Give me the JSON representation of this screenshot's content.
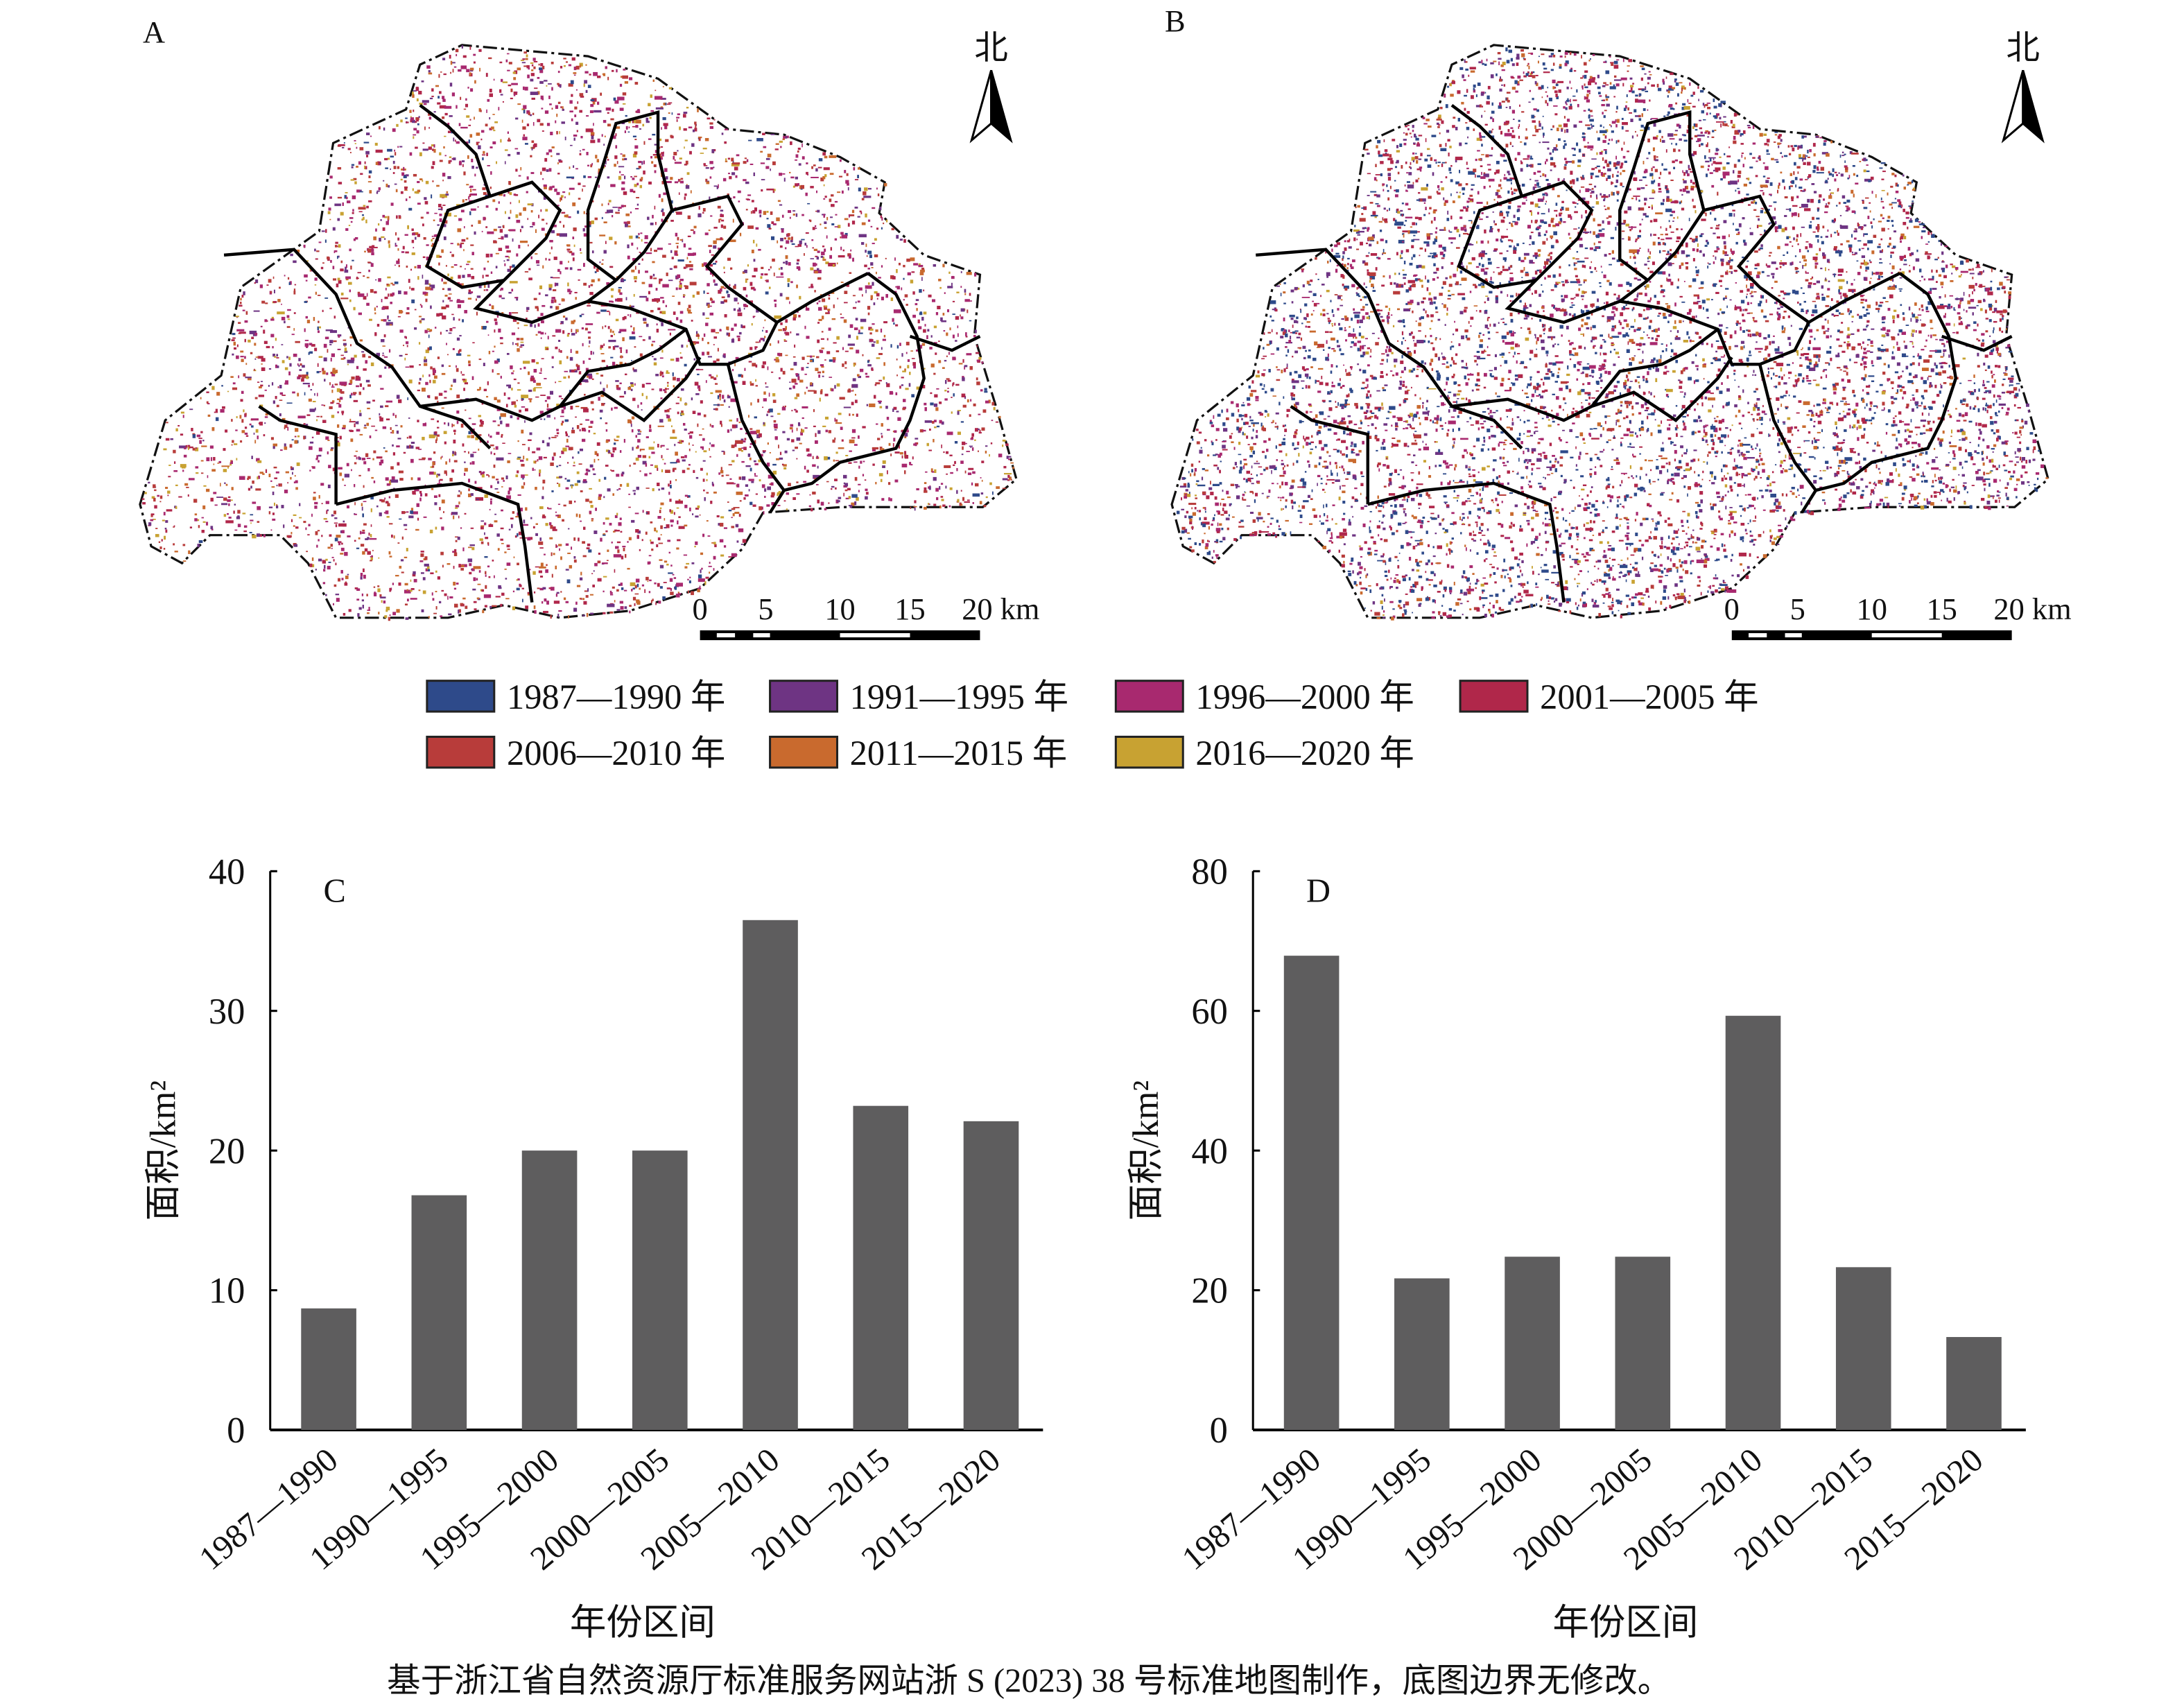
{
  "maps": [
    {
      "label": "A",
      "north": "北",
      "scale_labels": [
        "0",
        "5",
        "10",
        "15",
        "20 km"
      ]
    },
    {
      "label": "B",
      "north": "北",
      "scale_labels": [
        "0",
        "5",
        "10",
        "15",
        "20 km"
      ]
    }
  ],
  "legend": [
    {
      "label": "1987—1990 年",
      "color": "#2e4a8a"
    },
    {
      "label": "1991—1995 年",
      "color": "#6e3483"
    },
    {
      "label": "1996—2000 年",
      "color": "#a8296f"
    },
    {
      "label": "2001—2005 年",
      "color": "#b0274a"
    },
    {
      "label": "2006—2010 年",
      "color": "#b83c3a"
    },
    {
      "label": "2011—2015 年",
      "color": "#c96a2e"
    },
    {
      "label": "2016—2020 年",
      "color": "#c8a232"
    }
  ],
  "chart_data": [
    {
      "type": "bar",
      "panel": "C",
      "categories": [
        "1987—1990",
        "1990—1995",
        "1995—2000",
        "2000—2005",
        "2005—2010",
        "2010—2015",
        "2015—2020"
      ],
      "values": [
        8.7,
        16.8,
        20.0,
        20.0,
        36.5,
        23.2,
        22.1
      ],
      "xlabel": "年份区间",
      "ylabel": "面积/km²",
      "ylim": [
        0,
        40
      ],
      "yticks": [
        0,
        10,
        20,
        30,
        40
      ],
      "bar_color": "#5e5d5e"
    },
    {
      "type": "bar",
      "panel": "D",
      "categories": [
        "1987—1990",
        "1990—1995",
        "1995—2000",
        "2000—2005",
        "2005—2010",
        "2010—2015",
        "2015—2020"
      ],
      "values": [
        67.9,
        21.7,
        24.8,
        24.8,
        59.3,
        23.3,
        13.3
      ],
      "xlabel": "年份区间",
      "ylabel": "面积/km²",
      "ylim": [
        0,
        80
      ],
      "yticks": [
        0,
        20,
        40,
        60,
        80
      ],
      "bar_color": "#5e5d5e"
    }
  ],
  "caption": "基于浙江省自然资源厅标准服务网站浙 S (2023) 38 号标准地图制作，底图边界无修改。"
}
